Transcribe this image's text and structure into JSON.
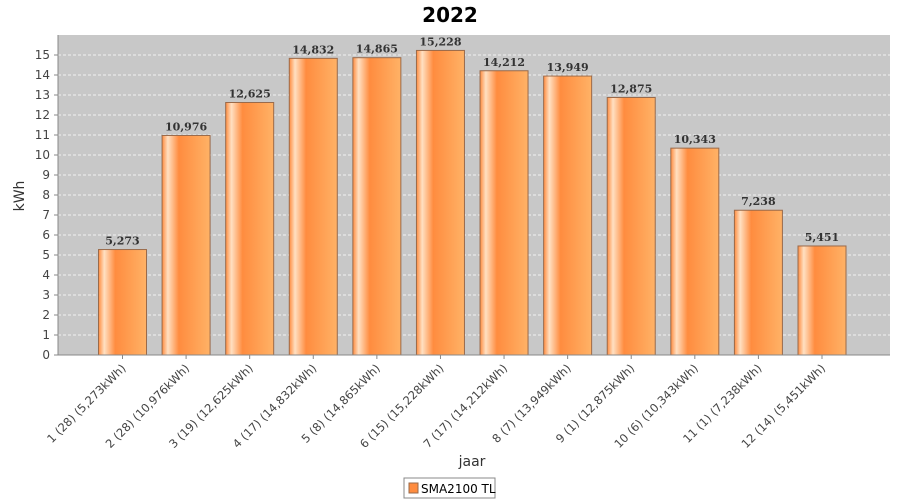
{
  "colors": {
    "plot_background": "#c8c8c8",
    "bar_fill": "#ff8c3f",
    "bar_highlight": "#ffd3a8",
    "bar_stroke": "#9a6a4a",
    "grid": "#ffffff"
  },
  "chart_data": {
    "type": "bar",
    "title": "2022",
    "xlabel": "jaar",
    "ylabel": "kWh",
    "ylim": [
      0,
      16
    ],
    "yticks": [
      0,
      1,
      2,
      3,
      4,
      5,
      6,
      7,
      8,
      9,
      10,
      11,
      12,
      13,
      14,
      15
    ],
    "grid": true,
    "legend_position": "bottom",
    "categories": [
      "1 (28)  (5,273kWh)",
      "2 (28)  (10,976kWh)",
      "3 (19)  (12,625kWh)",
      "4 (17)  (14,832kWh)",
      "5 (8)  (14,865kWh)",
      "6 (15)  (15,228kWh)",
      "7 (17)  (14,212kWh)",
      "8 (7)  (13,949kWh)",
      "9 (1)  (12,875kWh)",
      "10 (6)  (10,343kWh)",
      "11 (1)  (7,238kWh)",
      "12 (14)  (5,451kWh)"
    ],
    "series": [
      {
        "name": "SMA2100 TL",
        "values": [
          5.273,
          10.976,
          12.625,
          14.832,
          14.865,
          15.228,
          14.212,
          13.949,
          12.875,
          10.343,
          7.238,
          5.451
        ],
        "data_labels": [
          "5,273",
          "10,976",
          "12,625",
          "14,832",
          "14,865",
          "15,228",
          "14,212",
          "13,949",
          "12,875",
          "10,343",
          "7,238",
          "5,451"
        ]
      }
    ]
  }
}
